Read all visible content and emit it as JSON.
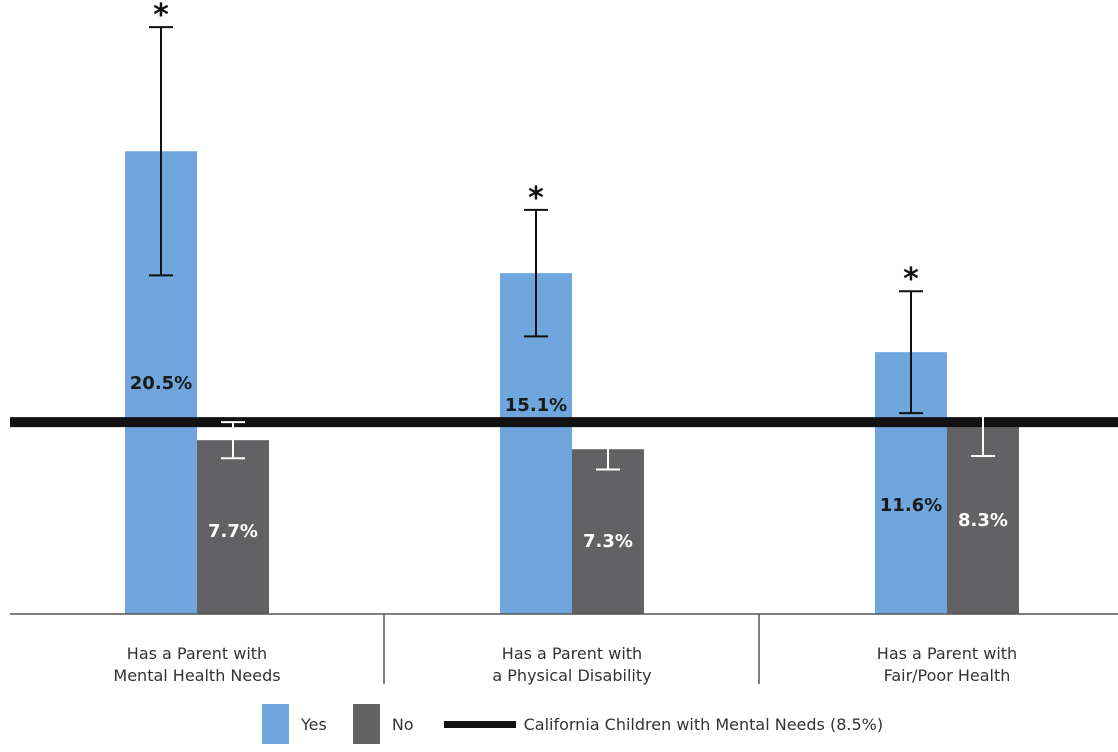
{
  "chart_data": {
    "type": "bar",
    "categories": [
      [
        "Has a Parent with",
        "Mental Health Needs"
      ],
      [
        "Has a Parent with",
        "a Physical Disability"
      ],
      [
        "Has a Parent with",
        "Fair/Poor Health"
      ]
    ],
    "series": [
      {
        "name": "Yes",
        "color": "#6ea6dd",
        "values": [
          20.5,
          15.1,
          11.6
        ],
        "labels": [
          "20.5%",
          "15.1%",
          "11.6%"
        ],
        "ci_low": [
          15.0,
          12.3,
          8.9
        ],
        "ci_high": [
          26.0,
          17.9,
          14.3
        ],
        "significant": [
          true,
          true,
          true
        ]
      },
      {
        "name": "No",
        "color": "#626264",
        "values": [
          7.7,
          7.3,
          8.3
        ],
        "labels": [
          "7.7%",
          "7.3%",
          "8.3%"
        ],
        "ci_low": [
          6.9,
          6.4,
          7.0
        ],
        "ci_high": [
          8.5,
          8.2,
          9.6
        ],
        "significant": [
          false,
          false,
          false
        ]
      }
    ],
    "reference_line": {
      "label": "California Children with Mental Needs (8.5%)",
      "value": 8.5,
      "color": "#111111"
    },
    "significance_marker": "*",
    "ylim": [
      0,
      27.2
    ],
    "grid": false,
    "legend_placement": "bottom-center"
  },
  "legend": {
    "yes_label": "Yes",
    "no_label": "No",
    "line_label": "California Children with Mental Needs (8.5%)"
  }
}
